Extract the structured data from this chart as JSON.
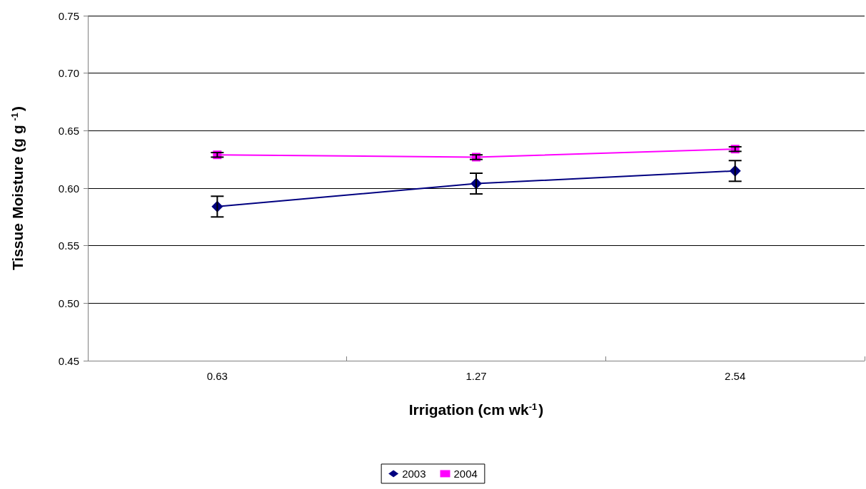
{
  "chart_data": {
    "type": "line",
    "xlabel": "Irrigation (cm wk$^{-1}$)",
    "ylabel": "Tissue Moisture (g g $^{-1}$)",
    "categories": [
      "0.63",
      "1.27",
      "2.54"
    ],
    "series": [
      {
        "name": "2003",
        "color": "#000080",
        "marker": "diamond",
        "values": [
          0.584,
          0.604,
          0.615
        ],
        "errors": [
          0.009,
          0.009,
          0.009
        ]
      },
      {
        "name": "2004",
        "color": "#ff00ff",
        "marker": "square",
        "values": [
          0.629,
          0.627,
          0.634
        ],
        "errors": [
          0.002,
          0.002,
          0.002
        ]
      }
    ],
    "ylim": [
      0.45,
      0.75
    ],
    "yticks": [
      0.45,
      {
        "value": 0.5,
        "label": "0.50"
      },
      0.55,
      {
        "value": 0.6,
        "label": "0.60"
      },
      0.65,
      {
        "value": 0.7,
        "label": "0.70"
      },
      0.75
    ],
    "grid": "y",
    "legend": "bottom"
  }
}
